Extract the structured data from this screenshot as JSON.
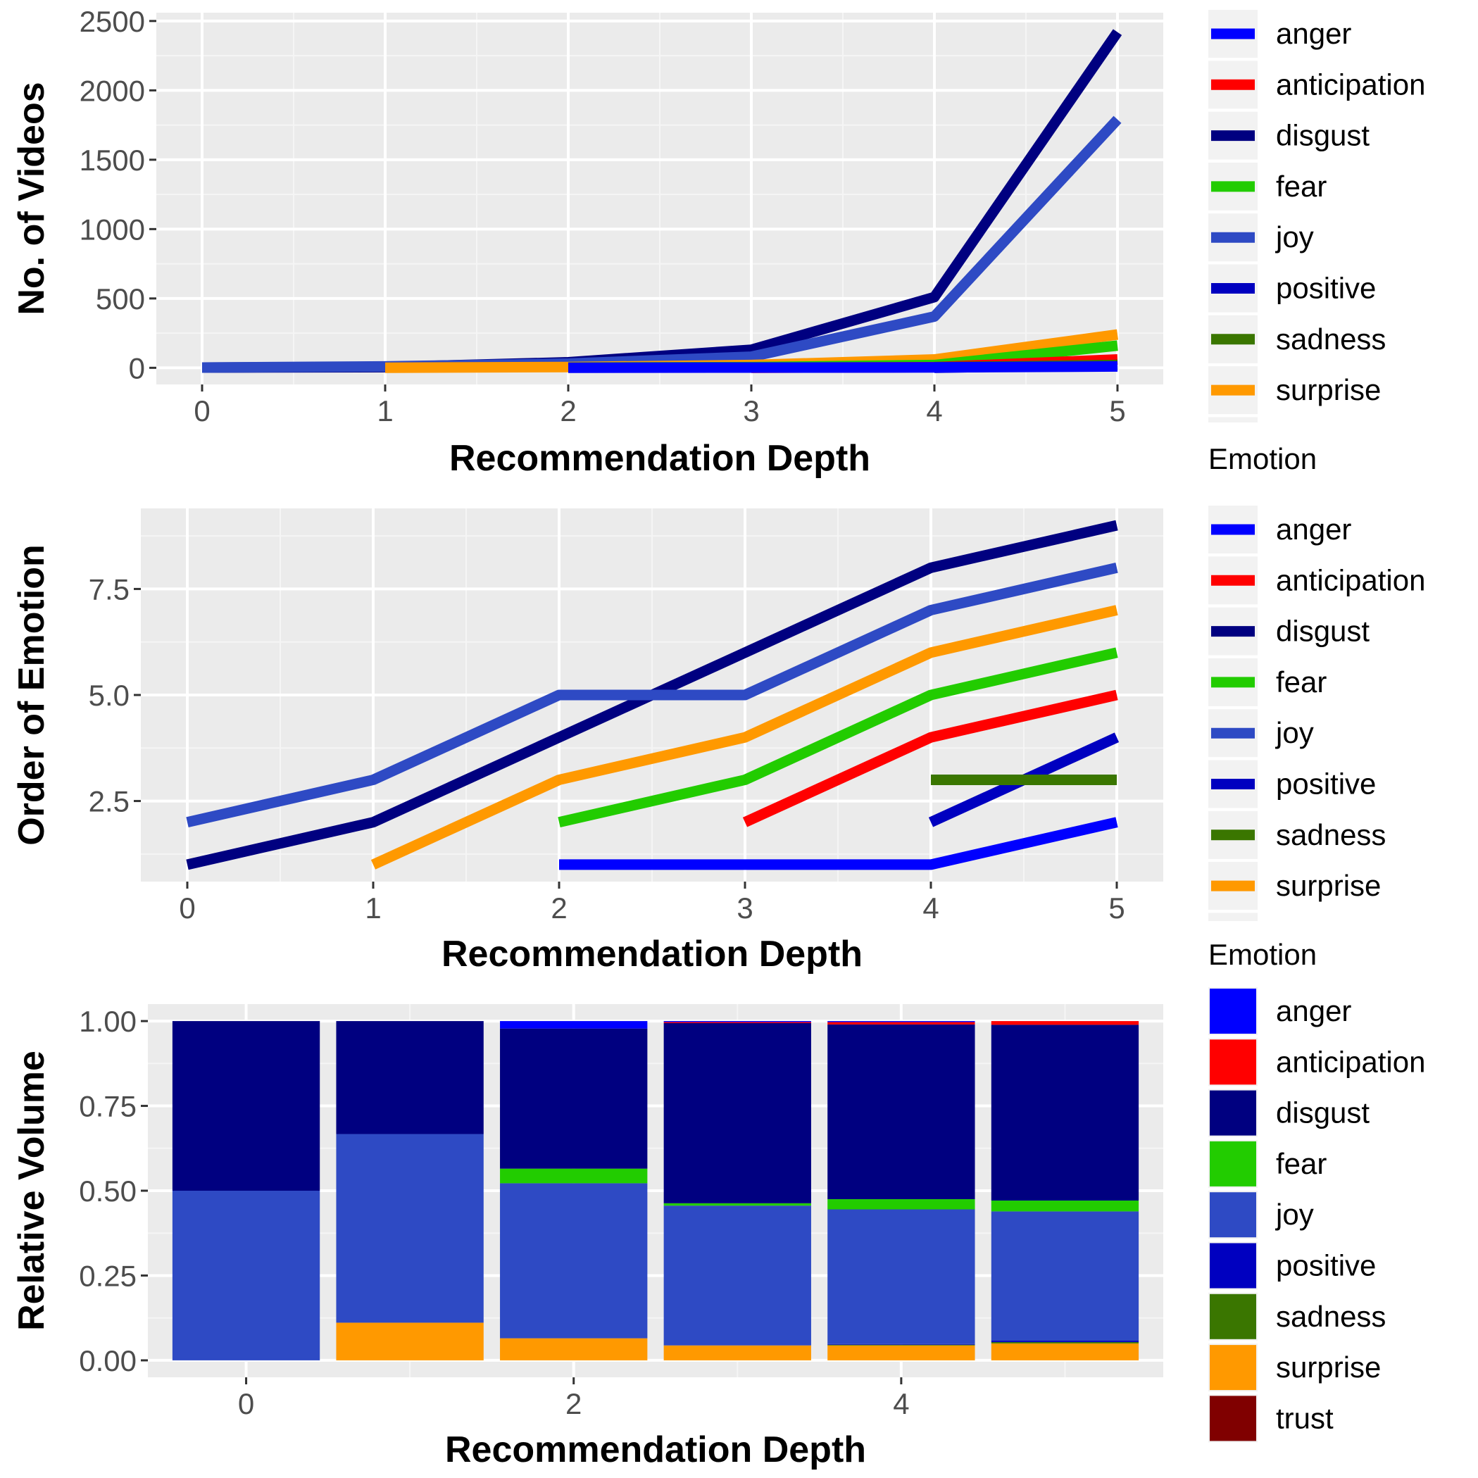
{
  "emotions": [
    "anger",
    "anticipation",
    "disgust",
    "fear",
    "joy",
    "positive",
    "sadness",
    "surprise",
    "trust"
  ],
  "colors": {
    "anger": "#0000ff",
    "anticipation": "#ff0000",
    "disgust": "#000080",
    "fear": "#22cc00",
    "joy": "#2e4ac4",
    "positive": "#0000c0",
    "sadness": "#3a7600",
    "surprise": "#ff9900",
    "trust": "#800000"
  },
  "chart_data": [
    {
      "type": "line",
      "xlabel": "Recommendation Depth",
      "ylabel": "No. of Videos",
      "xlim": [
        -0.25,
        5.25
      ],
      "ylim": [
        -120,
        2560
      ],
      "xticks": [
        0,
        1,
        2,
        3,
        4,
        5
      ],
      "yticks": [
        0,
        500,
        1000,
        1500,
        2000,
        2500
      ],
      "ytick_labels": [
        "0",
        "500",
        "1000",
        "1500",
        "2000",
        "2500"
      ],
      "grid": true,
      "legend_title": "",
      "legend_position": "right",
      "series": [
        {
          "name": "disgust",
          "x": [
            0,
            1,
            2,
            3,
            4,
            5
          ],
          "y": [
            2,
            5,
            40,
            130,
            510,
            2420
          ]
        },
        {
          "name": "joy",
          "x": [
            0,
            1,
            2,
            3,
            4,
            5
          ],
          "y": [
            2,
            10,
            30,
            80,
            370,
            1790
          ]
        },
        {
          "name": "surprise",
          "x": [
            1,
            2,
            3,
            4,
            5
          ],
          "y": [
            1,
            6,
            20,
            60,
            240
          ]
        },
        {
          "name": "fear",
          "x": [
            2,
            3,
            4,
            5
          ],
          "y": [
            2,
            5,
            20,
            160
          ]
        },
        {
          "name": "anticipation",
          "x": [
            3,
            4,
            5
          ],
          "y": [
            1,
            5,
            60
          ]
        },
        {
          "name": "positive",
          "x": [
            4,
            5
          ],
          "y": [
            1,
            20
          ]
        },
        {
          "name": "sadness",
          "x": [
            4,
            5
          ],
          "y": [
            5,
            20
          ]
        },
        {
          "name": "anger",
          "x": [
            2,
            3,
            4,
            5
          ],
          "y": [
            1,
            2,
            3,
            10
          ]
        }
      ]
    },
    {
      "type": "line",
      "xlabel": "Recommendation Depth",
      "ylabel": "Order of Emotion",
      "xlim": [
        -0.25,
        5.25
      ],
      "ylim": [
        0.6,
        9.4
      ],
      "xticks": [
        0,
        1,
        2,
        3,
        4,
        5
      ],
      "yticks": [
        2.5,
        5.0,
        7.5
      ],
      "ytick_labels": [
        "2.5",
        "5.0",
        "7.5"
      ],
      "grid": true,
      "legend_title": "Emotion",
      "legend_position": "right",
      "series": [
        {
          "name": "disgust",
          "x": [
            0,
            1,
            2,
            3,
            4,
            5
          ],
          "y": [
            1,
            2,
            4,
            6,
            8,
            9
          ]
        },
        {
          "name": "joy",
          "x": [
            0,
            1,
            2,
            3,
            4,
            5
          ],
          "y": [
            2,
            3,
            5,
            5,
            7,
            8
          ]
        },
        {
          "name": "surprise",
          "x": [
            1,
            2,
            3,
            4,
            5
          ],
          "y": [
            1,
            3,
            4,
            6,
            7
          ]
        },
        {
          "name": "fear",
          "x": [
            2,
            3,
            4,
            5
          ],
          "y": [
            2,
            3,
            5,
            6
          ]
        },
        {
          "name": "anticipation",
          "x": [
            3,
            4,
            5
          ],
          "y": [
            2,
            4,
            5
          ]
        },
        {
          "name": "positive",
          "x": [
            4,
            5
          ],
          "y": [
            2,
            4
          ]
        },
        {
          "name": "sadness",
          "x": [
            4,
            5
          ],
          "y": [
            3,
            3
          ]
        },
        {
          "name": "anger",
          "x": [
            2,
            3,
            4,
            5
          ],
          "y": [
            1,
            1,
            1,
            2
          ]
        }
      ]
    },
    {
      "type": "bar",
      "stacked": true,
      "xlabel": "Recommendation Depth",
      "ylabel": "Relative Volume",
      "categories": [
        0,
        1,
        2,
        3,
        4,
        5
      ],
      "xlim": [
        -0.6,
        5.6
      ],
      "ylim": [
        -0.05,
        1.05
      ],
      "xticks": [
        0,
        2,
        4
      ],
      "yticks": [
        0,
        0.25,
        0.5,
        0.75,
        1.0
      ],
      "ytick_labels": [
        "0.00",
        "0.25",
        "0.50",
        "0.75",
        "1.00"
      ],
      "grid": true,
      "legend_title": "Emotion",
      "legend_position": "right",
      "stack_order_bottom_to_top": [
        "trust",
        "surprise",
        "sadness",
        "positive",
        "joy",
        "fear",
        "disgust",
        "anticipation",
        "anger"
      ],
      "series": [
        {
          "name": "trust",
          "values": [
            0,
            0,
            0,
            0,
            0,
            0
          ]
        },
        {
          "name": "surprise",
          "values": [
            0,
            0.111,
            0.065,
            0.044,
            0.044,
            0.05
          ]
        },
        {
          "name": "sadness",
          "values": [
            0,
            0,
            0,
            0,
            0.002,
            0.004
          ]
        },
        {
          "name": "positive",
          "values": [
            0,
            0,
            0,
            0,
            0.002,
            0.004
          ]
        },
        {
          "name": "joy",
          "values": [
            0.5,
            0.556,
            0.457,
            0.412,
            0.397,
            0.381
          ]
        },
        {
          "name": "fear",
          "values": [
            0,
            0,
            0.043,
            0.007,
            0.03,
            0.032
          ]
        },
        {
          "name": "disgust",
          "values": [
            0.5,
            0.333,
            0.413,
            0.531,
            0.515,
            0.518
          ]
        },
        {
          "name": "anticipation",
          "values": [
            0,
            0,
            0,
            0.003,
            0.007,
            0.011
          ]
        },
        {
          "name": "anger",
          "values": [
            0,
            0,
            0.022,
            0.003,
            0.003,
            0
          ]
        }
      ]
    }
  ]
}
